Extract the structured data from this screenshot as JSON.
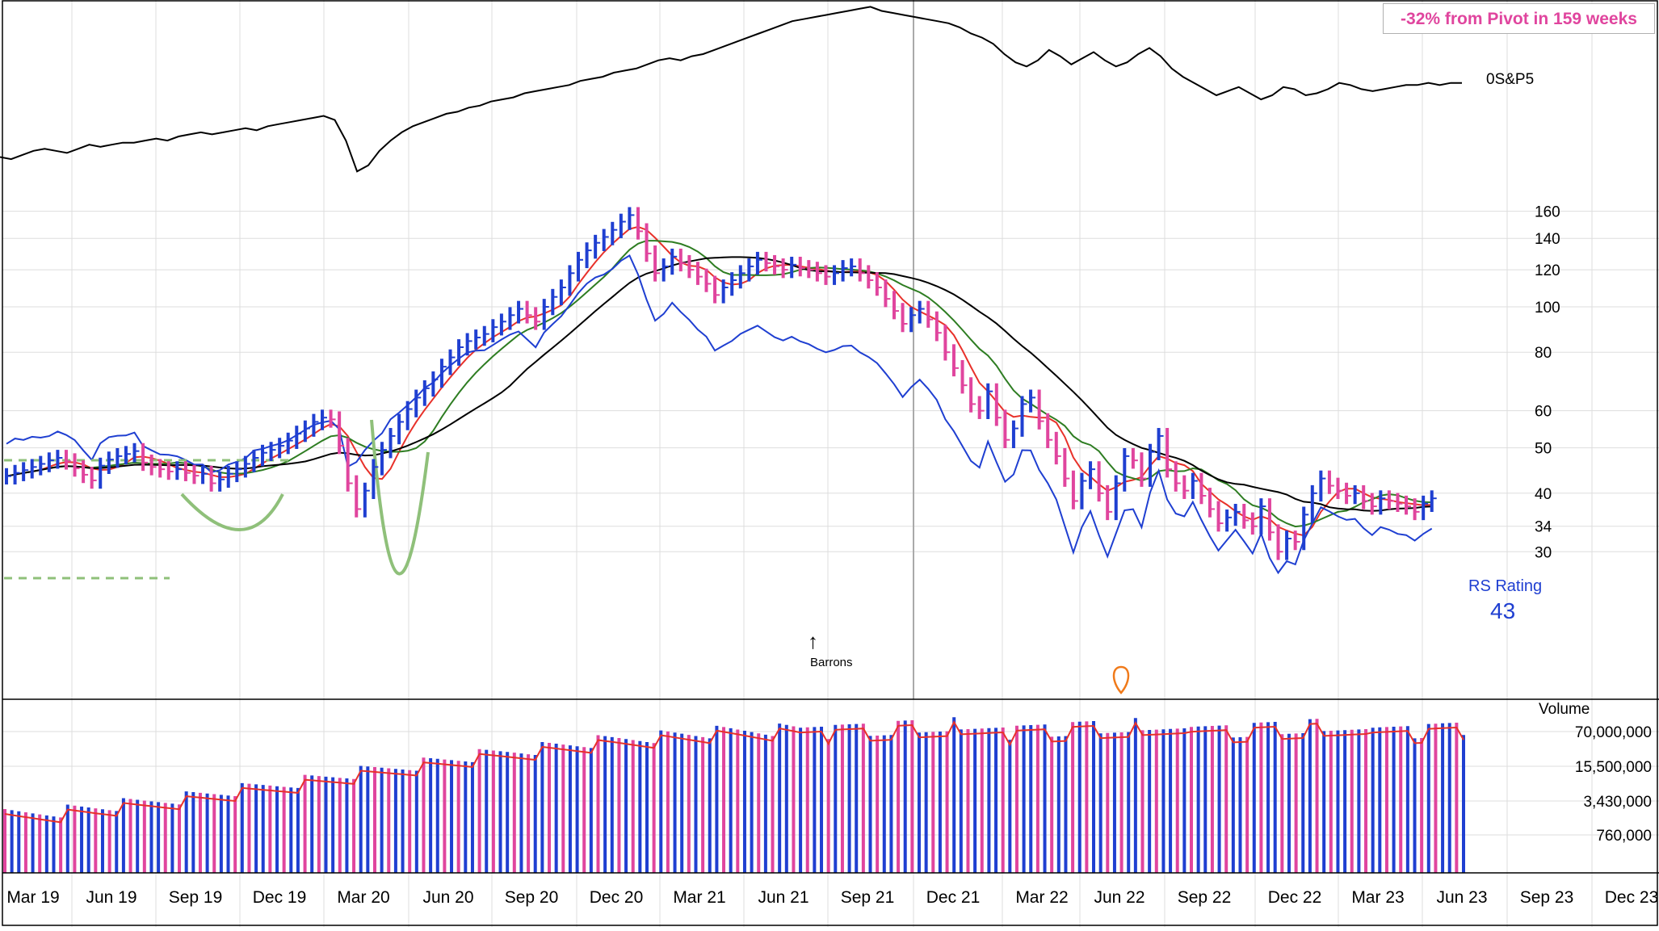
{
  "annotation": {
    "pivot_text": "-32% from Pivot in 159 weeks",
    "event_label": "Barrons"
  },
  "chart_data": {
    "type": "bar",
    "price_axis_ticks": [
      30,
      34,
      40,
      50,
      60,
      80,
      100,
      120,
      140,
      160
    ],
    "volume_axis_label": "Volume",
    "volume_axis_ticks": [
      "70,000,000",
      "15,500,000",
      "3,430,000",
      "760,000"
    ],
    "x_tick_labels": [
      "Mar 19",
      "Jun 19",
      "Sep 19",
      "Dec 19",
      "Mar 20",
      "Jun 20",
      "Sep 20",
      "Dec 20",
      "Mar 21",
      "Jun 21",
      "Sep 21",
      "Dec 21",
      "Mar 22",
      "Jun 22",
      "Sep 22",
      "Dec 22",
      "Mar 23",
      "Jun 23",
      "Sep 23",
      "Dec 23"
    ],
    "index_label": "0S&P5",
    "rs_label": "RS Rating",
    "rs_value": "43",
    "price_closes": [
      43.5,
      44.2,
      44.8,
      45.5,
      46.2,
      47.0,
      47.6,
      46.8,
      45.2,
      43.8,
      42.6,
      45.8,
      47.2,
      48.0,
      48.5,
      49.2,
      46.5,
      45.5,
      45.0,
      44.5,
      45.0,
      44.2,
      43.6,
      44.0,
      42.0,
      42.8,
      44.0,
      45.0,
      46.2,
      47.6,
      48.8,
      49.5,
      50.5,
      51.8,
      53.6,
      55.0,
      56.8,
      58.0,
      57.5,
      50.5,
      42.0,
      37.0,
      40.5,
      45.5,
      49.5,
      53.0,
      56.8,
      60.5,
      64.0,
      67.0,
      70.0,
      74.5,
      78.0,
      82.0,
      84.5,
      86.0,
      87.5,
      90.5,
      93.0,
      96.0,
      99.0,
      96.0,
      93.0,
      100.0,
      105.0,
      110.0,
      118.0,
      126.0,
      132.0,
      137.0,
      141.0,
      146.0,
      152.0,
      157.0,
      145.0,
      130.0,
      118.0,
      122.0,
      128.0,
      124.0,
      120.0,
      116.0,
      112.0,
      106.0,
      110.0,
      114.0,
      118.0,
      122.0,
      126.0,
      124.0,
      122.0,
      120.0,
      123.0,
      121.0,
      120.0,
      118.0,
      116.0,
      118.0,
      121.0,
      122.0,
      118.0,
      114.0,
      110.0,
      104.0,
      98.0,
      92.0,
      96.0,
      99.0,
      94.0,
      88.0,
      80.0,
      74.0,
      68.0,
      62.0,
      60.0,
      66.0,
      58.0,
      52.0,
      55.0,
      62.0,
      64.0,
      57.0,
      52.0,
      48.0,
      43.0,
      38.5,
      42.5,
      45.0,
      40.0,
      36.5,
      42.0,
      48.0,
      47.0,
      43.0,
      49.0,
      53.0,
      45.0,
      42.0,
      40.5,
      42.5,
      39.5,
      37.0,
      34.5,
      35.5,
      36.5,
      35.0,
      34.0,
      37.5,
      33.0,
      30.0,
      32.0,
      31.5,
      36.0,
      40.0,
      43.0,
      41.5,
      40.5,
      39.5,
      40.0,
      38.5,
      37.5,
      39.0,
      38.5,
      38.0,
      37.5,
      36.5,
      38.0,
      39.0
    ],
    "sp500_index": [
      100,
      99,
      101,
      103,
      104,
      103,
      102,
      104,
      106,
      105,
      106,
      107,
      107,
      108,
      109,
      108,
      110,
      111,
      112,
      111,
      112,
      113,
      114,
      113,
      115,
      116,
      117,
      118,
      119,
      120,
      118,
      108,
      93,
      96,
      103,
      108,
      112,
      115,
      117,
      119,
      121,
      122,
      124,
      125,
      127,
      128,
      129,
      131,
      132,
      133,
      134,
      135,
      137,
      138,
      139,
      141,
      142,
      143,
      145,
      147,
      148,
      147,
      149,
      150,
      152,
      154,
      156,
      158,
      160,
      162,
      164,
      166,
      167,
      168,
      169,
      170,
      171,
      172,
      173,
      171,
      170,
      169,
      168,
      167,
      166,
      165,
      163,
      160,
      158,
      155,
      150,
      146,
      144,
      147,
      152,
      149,
      145,
      148,
      151,
      147,
      144,
      146,
      150,
      153,
      149,
      143,
      139,
      136,
      133,
      130,
      132,
      134,
      131,
      128,
      130,
      134,
      133,
      130,
      131,
      133,
      136,
      135,
      133,
      132,
      133,
      134,
      135,
      135,
      136,
      135,
      136,
      136
    ],
    "sp500_scale": "relative, unlabeled",
    "volume": {
      "bars": 210,
      "moving_average_color": "#e8312a",
      "up_color": "#1f3fd1",
      "down_color": "#e0459e"
    },
    "moving_averages": [
      {
        "name": "",
        "color": "#e8312a"
      },
      {
        "name": "",
        "color": "#2e7d22"
      },
      {
        "name": "",
        "color": "#000000"
      }
    ],
    "rs_line_color": "#1f3fd1",
    "pivot_marker_color": "#f07a1a",
    "base_pattern_color": "#8fc07a",
    "up_bar_color": "#1f3fd1",
    "down_bar_color": "#e0459e"
  }
}
